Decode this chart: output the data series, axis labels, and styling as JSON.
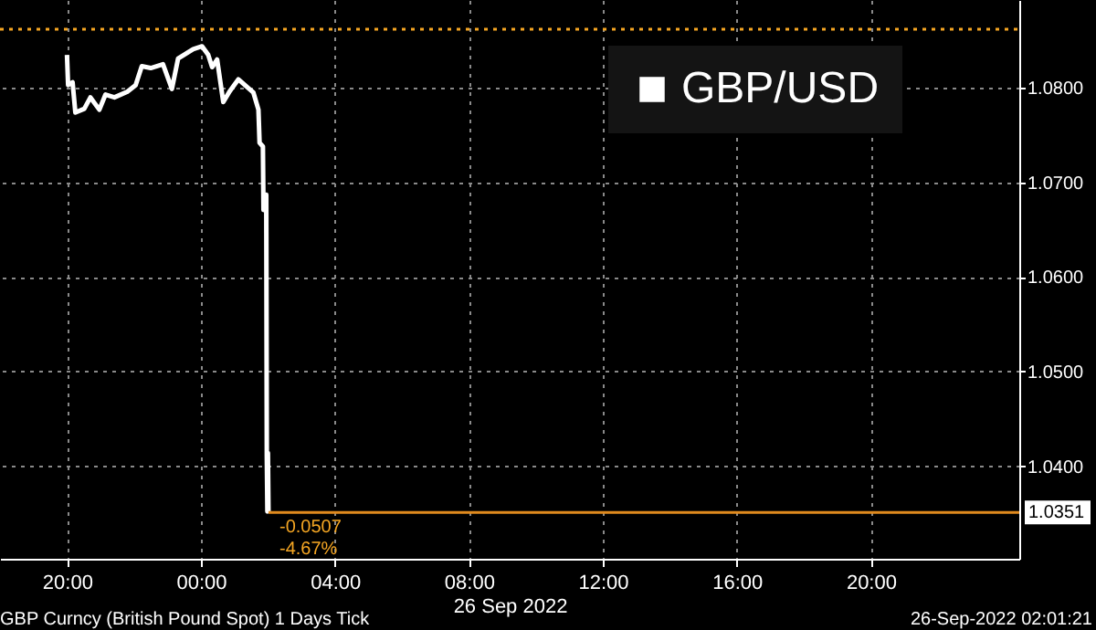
{
  "chart_data": {
    "type": "line",
    "xlabel": "26 Sep 2022",
    "x": [
      "2022-09-25T20:00",
      "2022-09-25T20:02",
      "2022-09-25T20:10",
      "2022-09-25T20:15",
      "2022-09-25T20:31",
      "2022-09-25T20:42",
      "2022-09-25T20:58",
      "2022-09-25T21:09",
      "2022-09-25T21:25",
      "2022-09-25T21:48",
      "2022-09-25T22:03",
      "2022-09-25T22:14",
      "2022-09-25T22:30",
      "2022-09-25T22:52",
      "2022-09-25T23:08",
      "2022-09-25T23:19",
      "2022-09-25T23:46",
      "2022-09-26T00:02",
      "2022-09-26T00:13",
      "2022-09-26T00:20",
      "2022-09-26T00:29",
      "2022-09-26T00:40",
      "2022-09-26T00:51",
      "2022-09-26T01:07",
      "2022-09-26T01:34",
      "2022-09-26T01:43",
      "2022-09-26T01:45",
      "2022-09-26T01:51",
      "2022-09-26T01:52",
      "2022-09-26T01:57",
      "2022-09-26T01:58",
      "2022-09-26T01:59",
      "2022-09-26T02:00",
      "2022-09-26T02:01"
    ],
    "series": [
      {
        "name": "GBP/USD",
        "color": "#ffffff",
        "values": [
          1.0835,
          1.0803,
          1.0806,
          1.0774,
          1.0778,
          1.079,
          1.0777,
          1.0793,
          1.079,
          1.0796,
          1.0803,
          1.0823,
          1.0821,
          1.0825,
          1.0799,
          1.0831,
          1.0841,
          1.0844,
          1.0835,
          1.0822,
          1.083,
          1.0785,
          1.0796,
          1.0809,
          1.0795,
          1.0777,
          1.0742,
          1.0738,
          1.0671,
          1.0687,
          1.041,
          1.0352,
          1.0414,
          1.0351
        ]
      }
    ],
    "xlim": [
      "2022-09-25T18:00",
      "2022-09-27T00:26"
    ],
    "xticks": [
      {
        "value": "2022-09-25T20:00",
        "label": "20:00"
      },
      {
        "value": "2022-09-26T00:00",
        "label": "00:00"
      },
      {
        "value": "2022-09-26T04:00",
        "label": "04:00"
      },
      {
        "value": "2022-09-26T08:00",
        "label": "08:00"
      },
      {
        "value": "2022-09-26T12:00",
        "label": "12:00"
      },
      {
        "value": "2022-09-26T16:00",
        "label": "16:00"
      },
      {
        "value": "2022-09-26T20:00",
        "label": "20:00"
      }
    ],
    "ylim": [
      1.0302,
      1.0893
    ],
    "yticks": [
      {
        "value": 1.04,
        "label": "1.0400"
      },
      {
        "value": 1.05,
        "label": "1.0500"
      },
      {
        "value": 1.06,
        "label": "1.0600"
      },
      {
        "value": 1.07,
        "label": "1.0700"
      },
      {
        "value": 1.08,
        "label": "1.0800"
      }
    ],
    "ref_lines": [
      {
        "axis": "y",
        "value": 1.0862,
        "color": "#f5a623",
        "line_style": "dotted"
      },
      {
        "axis": "y",
        "value": 1.0351,
        "label": "1.0351",
        "color": "#e08a1e",
        "line_style": "solid"
      }
    ],
    "annotations": [
      {
        "text": "-0.0507",
        "x": "2022-09-26T02:01",
        "y": 1.0351
      },
      {
        "text": "-4.67%",
        "x": "2022-09-26T02:01",
        "y": 1.0351
      },
      "GBP Curncy (British Pound Spot) 1 Days  Tick",
      "26-Sep-2022 02:01:21"
    ],
    "grid": true,
    "legend": "top right",
    "line_style": "solid",
    "marker": "none"
  }
}
